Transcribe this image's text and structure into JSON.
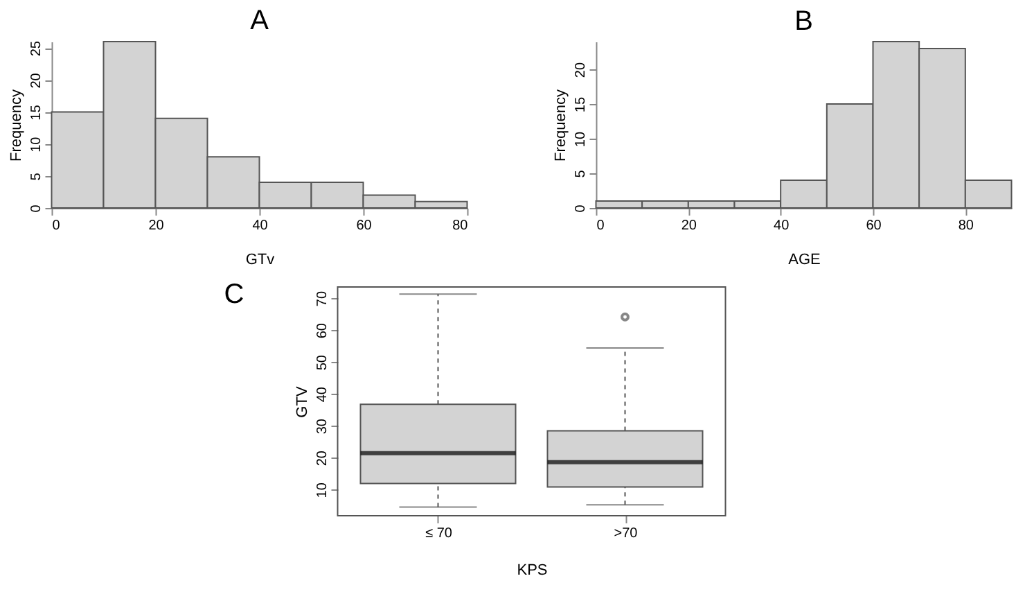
{
  "chart_data": [
    {
      "type": "histogram",
      "title": "A",
      "xlabel": "GTv",
      "ylabel": "Frequency",
      "bins": [
        0,
        10,
        20,
        30,
        40,
        50,
        60,
        70,
        80
      ],
      "values": [
        15,
        26,
        14,
        8,
        4,
        4,
        2,
        1
      ],
      "color": "#d3d3d3",
      "xlim": [
        0,
        80
      ],
      "xticks": [
        0,
        20,
        40,
        60,
        80
      ],
      "ylim": [
        0,
        26
      ],
      "yticks": [
        0,
        5,
        10,
        15,
        20,
        25
      ],
      "grid": false
    },
    {
      "type": "histogram",
      "title": "B",
      "xlabel": "AGE",
      "ylabel": "Frequency",
      "bins": [
        0,
        10,
        20,
        30,
        40,
        50,
        60,
        70,
        80,
        90
      ],
      "values": [
        1,
        1,
        1,
        1,
        4,
        15,
        24,
        23,
        4
      ],
      "color": "#d3d3d3",
      "xlim": [
        0,
        90
      ],
      "xticks": [
        0,
        20,
        40,
        60,
        80
      ],
      "ylim": [
        0,
        24
      ],
      "yticks": [
        0,
        5,
        10,
        15,
        20
      ],
      "grid": false
    },
    {
      "type": "box",
      "title": "C",
      "xlabel": "KPS",
      "ylabel": "GTV",
      "categories": [
        "≤ 70",
        ">70"
      ],
      "color": "#d3d3d3",
      "ylim": [
        1.8,
        73.5
      ],
      "yticks": [
        10,
        20,
        30,
        40,
        50,
        60,
        70
      ],
      "grid": false,
      "boxes": [
        {
          "low": 4.5,
          "q1": 11.9,
          "median": 21.4,
          "q3": 36.7,
          "high": 71.3
        },
        {
          "low": 5.2,
          "q1": 10.8,
          "median": 18.6,
          "q3": 28.4,
          "high": 54.4,
          "outliers": [
            64.1
          ]
        }
      ]
    }
  ]
}
